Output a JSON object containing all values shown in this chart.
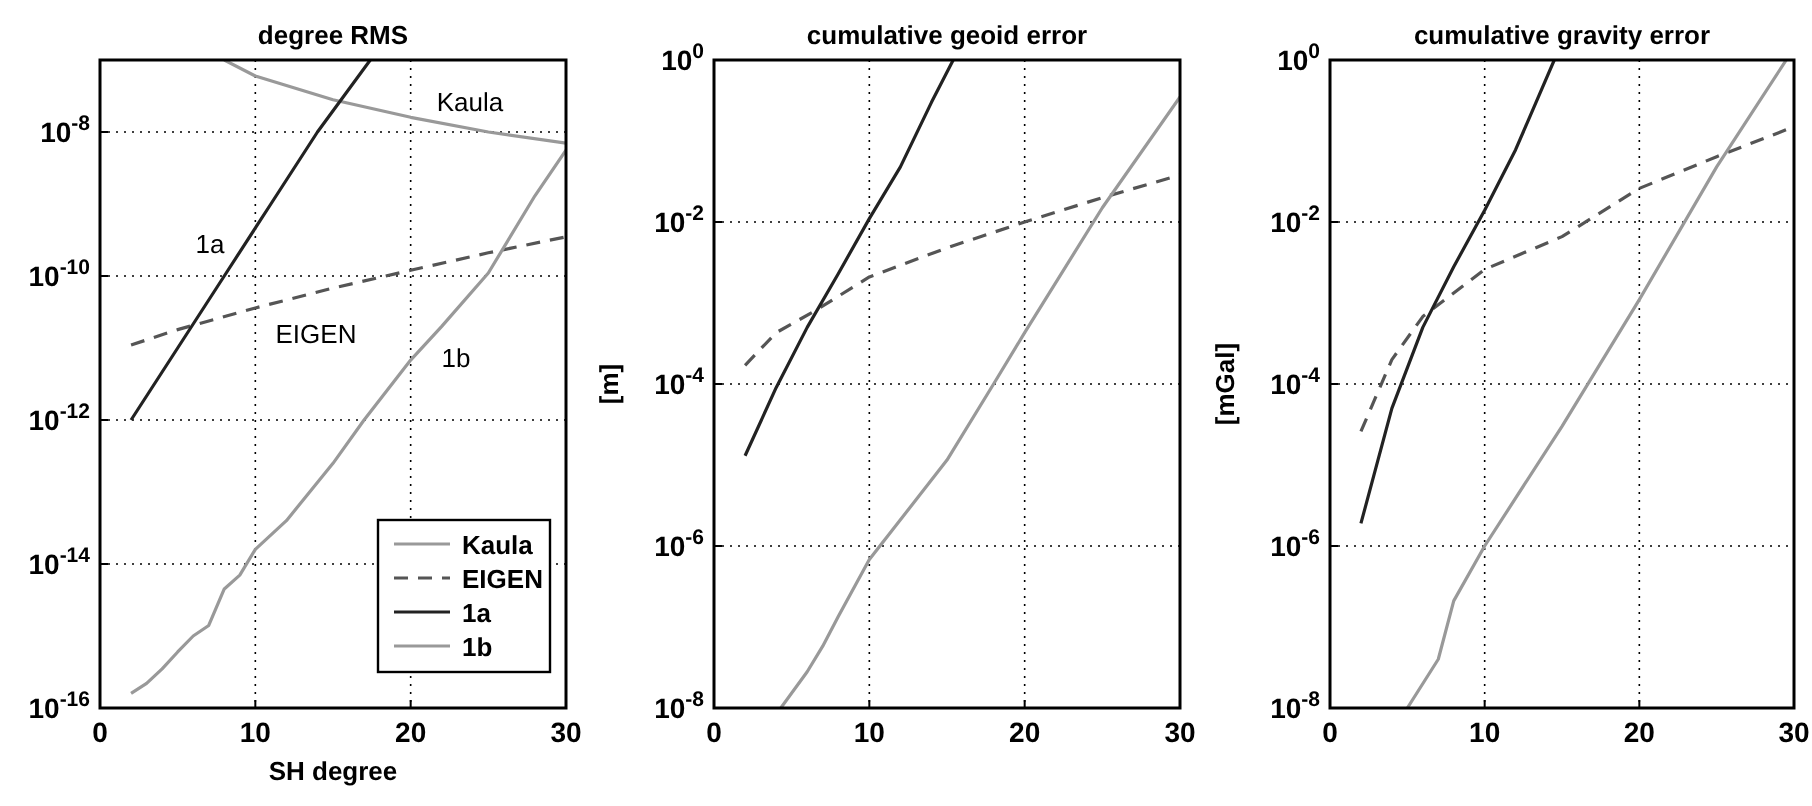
{
  "chart_data": [
    {
      "type": "line",
      "title": "degree RMS",
      "xlabel": "SH degree",
      "xlim": [
        0,
        30
      ],
      "xticks": [
        0,
        10,
        20,
        30
      ],
      "log": "y",
      "ylim": [
        1e-16,
        1e-07
      ],
      "yticks": [
        {
          "value": 1e-16,
          "label": "10$^{-16}$"
        },
        {
          "value": 1e-14,
          "label": "10$^{-14}$"
        },
        {
          "value": 1e-12,
          "label": "10$^{-12}$"
        },
        {
          "value": 1e-10,
          "label": "10$^{-10}$"
        },
        {
          "value": 1e-08,
          "label": "10$^{-8}$"
        }
      ],
      "grid": true,
      "legend": "bottom right",
      "series": [
        {
          "name": "Kaula",
          "color": "#999999",
          "x": [
            8,
            10,
            15,
            20,
            25,
            30
          ],
          "values": [
            1e-07,
            6e-08,
            2.8e-08,
            1.6e-08,
            1e-08,
            7e-09
          ]
        },
        {
          "name": "EIGEN",
          "color": "#555555",
          "line_style": "dashed",
          "x": [
            2,
            5,
            10,
            15,
            20,
            25,
            30
          ],
          "values": [
            1.1e-11,
            1.8e-11,
            3.6e-11,
            6.8e-11,
            1.2e-10,
            2.1e-10,
            3.5e-10
          ]
        },
        {
          "name": "1a",
          "color": "#222222",
          "x": [
            2,
            5,
            8,
            11,
            14,
            17.4
          ],
          "values": [
            1e-12,
            1e-11,
            1e-10,
            1e-09,
            1e-08,
            1e-07
          ]
        },
        {
          "name": "1b",
          "color": "#999999",
          "x": [
            2,
            3,
            4,
            5,
            6,
            7,
            8,
            9,
            10,
            12,
            15,
            17,
            20,
            22,
            25,
            28,
            30
          ],
          "values": [
            1.6e-16,
            2.2e-16,
            3.5e-16,
            6e-16,
            1e-15,
            1.4e-15,
            4.5e-15,
            7e-15,
            1.6e-14,
            4e-14,
            2.5e-13,
            1e-12,
            6.8e-12,
            2e-11,
            1.1e-10,
            1.3e-09,
            5.6e-09
          ]
        }
      ],
      "annotations": [
        "Kaula",
        "1a",
        "EIGEN",
        "1b"
      ]
    },
    {
      "type": "line",
      "title": "cumulative geoid error",
      "ylabel": "[m]",
      "xlim": [
        0,
        30
      ],
      "xticks": [
        0,
        10,
        20,
        30
      ],
      "log": "y",
      "ylim": [
        1e-08,
        1
      ],
      "yticks": [
        {
          "value": 1e-08,
          "label": "10$^{-8}$"
        },
        {
          "value": 1e-06,
          "label": "10$^{-6}$"
        },
        {
          "value": 0.0001,
          "label": "10$^{-4}$"
        },
        {
          "value": 0.01,
          "label": "10$^{-2}$"
        },
        {
          "value": 1,
          "label": "10$^{0}$"
        }
      ],
      "grid": true,
      "series": [
        {
          "color": "#555555",
          "line_style": "dashed",
          "x": [
            2,
            4,
            6.5,
            10,
            15,
            20,
            25,
            30
          ],
          "values": [
            0.00017,
            0.00043,
            0.0008,
            0.0021,
            0.0048,
            0.01,
            0.02,
            0.038
          ]
        },
        {
          "color": "#222222",
          "x": [
            2,
            4,
            6,
            8,
            10,
            12,
            14,
            15.4
          ],
          "values": [
            1.3e-05,
            9e-05,
            0.0005,
            0.0023,
            0.011,
            0.048,
            0.3,
            1
          ]
        },
        {
          "color": "#999999",
          "x": [
            4.3,
            6,
            7,
            8,
            10,
            15,
            18,
            20,
            25,
            30
          ],
          "values": [
            1e-08,
            2.8e-08,
            5.8e-08,
            1.35e-07,
            6.8e-07,
            1.15e-05,
            0.0001,
            0.00043,
            0.015,
            0.35
          ]
        }
      ]
    },
    {
      "type": "line",
      "title": "cumulative gravity error",
      "ylabel": "[mGal]",
      "xlim": [
        0,
        30
      ],
      "xticks": [
        0,
        10,
        20,
        30
      ],
      "log": "y",
      "ylim": [
        1e-08,
        1
      ],
      "yticks": [
        {
          "value": 1e-08,
          "label": "10$^{-8}$"
        },
        {
          "value": 1e-06,
          "label": "10$^{-6}$"
        },
        {
          "value": 0.0001,
          "label": "10$^{-4}$"
        },
        {
          "value": 0.01,
          "label": "10$^{-2}$"
        },
        {
          "value": 1,
          "label": "10$^{0}$"
        }
      ],
      "grid": true,
      "series": [
        {
          "color": "#555555",
          "line_style": "dashed",
          "x": [
            2,
            4,
            6,
            10,
            15,
            20,
            25,
            30
          ],
          "values": [
            2.6e-05,
            0.0002,
            0.00068,
            0.0026,
            0.0066,
            0.026,
            0.064,
            0.15
          ]
        },
        {
          "color": "#222222",
          "x": [
            2,
            4,
            6,
            8,
            10,
            12,
            14.5
          ],
          "values": [
            1.9e-06,
            5e-05,
            0.0005,
            0.0028,
            0.014,
            0.078,
            1
          ]
        },
        {
          "color": "#999999",
          "x": [
            5,
            7,
            8,
            10,
            15,
            20,
            25,
            29.5
          ],
          "values": [
            1e-08,
            4e-08,
            2.1e-07,
            1e-06,
            3e-05,
            0.0011,
            0.048,
            1
          ]
        }
      ]
    }
  ]
}
